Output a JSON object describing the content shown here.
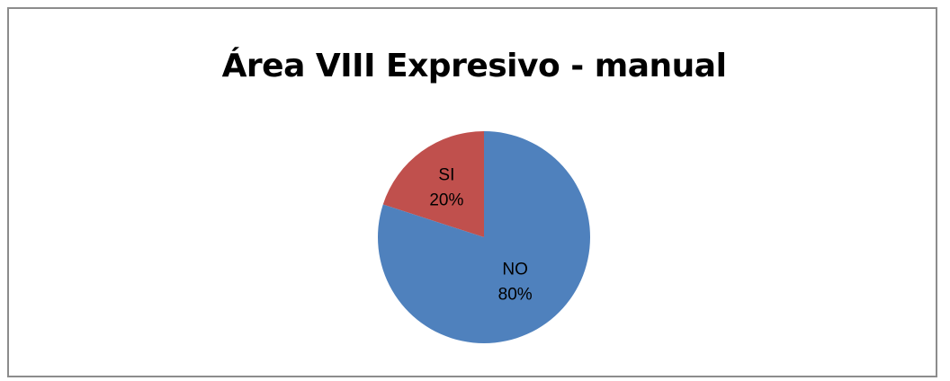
{
  "chart_data": {
    "type": "pie",
    "title": "Área VIII Expresivo - manual",
    "slices": [
      {
        "label": "SI",
        "percent_label": "20%",
        "value": 20,
        "color": "#c0504d"
      },
      {
        "label": "NO",
        "percent_label": "80%",
        "value": 80,
        "color": "#4f81bd"
      }
    ],
    "start_angle_deg": 0,
    "direction": "counterclockwise",
    "legend": "none"
  }
}
